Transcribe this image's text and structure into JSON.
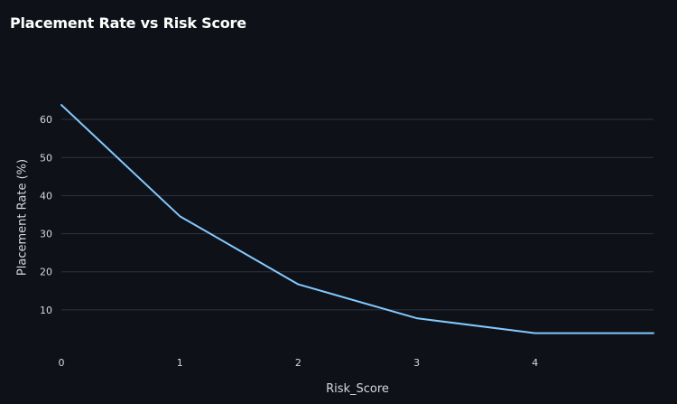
{
  "chart_data": {
    "type": "line",
    "title": "Placement Rate vs Risk Score",
    "xlabel": "Risk_Score",
    "ylabel": "Placement Rate (%)",
    "x": [
      0,
      1,
      2,
      3,
      4,
      5
    ],
    "series": [
      {
        "values": [
          63.8,
          34.6,
          16.7,
          7.8,
          3.9,
          3.9
        ]
      }
    ],
    "xlim": [
      0,
      5
    ],
    "ylim": [
      0,
      70
    ],
    "xticks": [
      0,
      1,
      2,
      3,
      4
    ],
    "yticks": [
      10,
      20,
      30,
      40,
      50,
      60
    ],
    "grid": "horizontal",
    "line_color": "#83c9ff",
    "background_color": "#0e1117",
    "grid_color": "#31333f"
  }
}
